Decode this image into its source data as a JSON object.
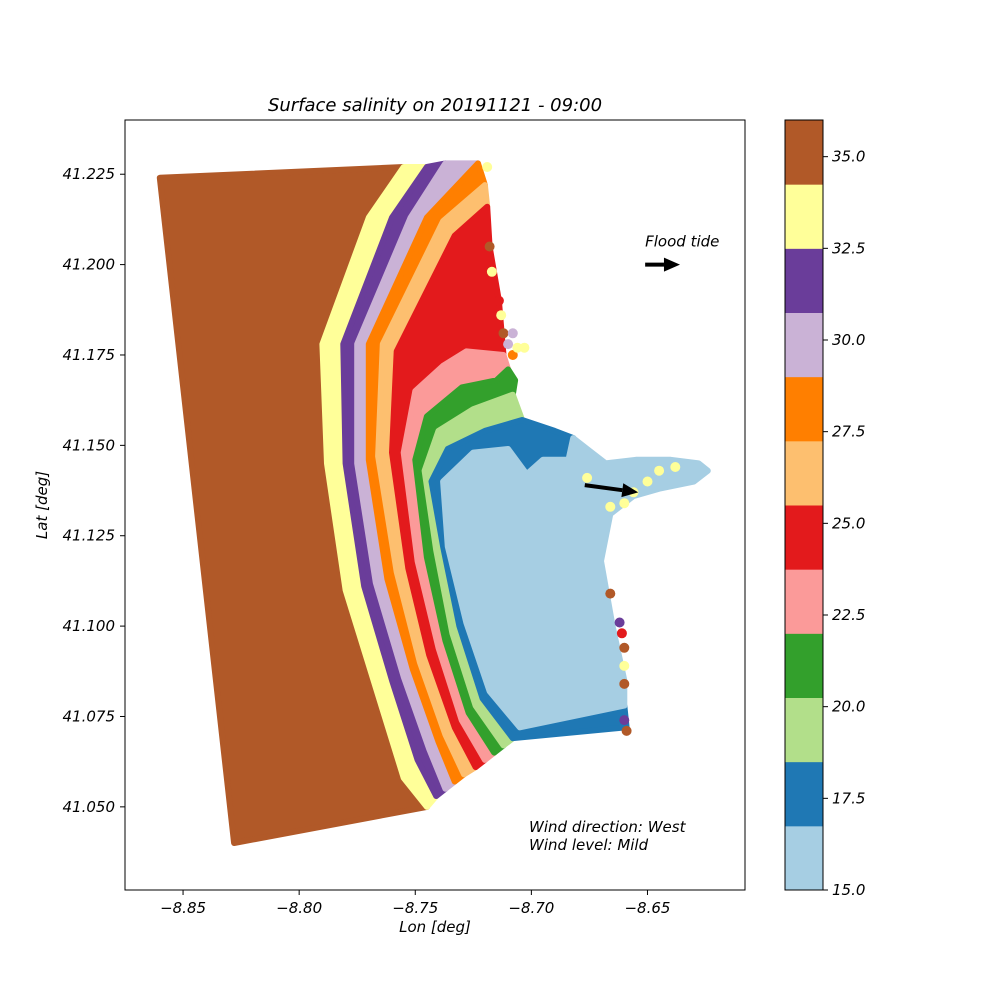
{
  "chart_data": {
    "type": "scatter",
    "title": "Surface salinity on 20191121 - 09:00",
    "xlabel": "Lon [deg]",
    "ylabel": "Lat [deg]",
    "xlim": [
      -8.875,
      -8.608
    ],
    "ylim": [
      41.027,
      41.24
    ],
    "x_ticks": [
      -8.85,
      -8.8,
      -8.75,
      -8.7,
      -8.65
    ],
    "x_tick_labels": [
      "−8.85",
      "−8.80",
      "−8.75",
      "−8.70",
      "−8.65"
    ],
    "y_ticks": [
      41.05,
      41.075,
      41.1,
      41.125,
      41.15,
      41.175,
      41.2,
      41.225
    ],
    "y_tick_labels": [
      "41.050",
      "41.075",
      "41.100",
      "41.125",
      "41.150",
      "41.175",
      "41.200",
      "41.225"
    ],
    "grid": false,
    "annotations": [
      {
        "text": "Flood tide",
        "x": -8.651,
        "y": 41.205
      },
      {
        "text": "Wind direction: West",
        "x": -8.701,
        "y": 41.043
      },
      {
        "text": "Wind level: Mild",
        "x": -8.701,
        "y": 41.038
      }
    ],
    "arrows": [
      {
        "name": "flood-tide",
        "from": [
          -8.651,
          41.2
        ],
        "to": [
          -8.636,
          41.2
        ]
      },
      {
        "name": "river-flow",
        "from": [
          -8.677,
          41.139
        ],
        "to": [
          -8.654,
          41.137
        ]
      }
    ],
    "colorbar": {
      "label": "",
      "min": 15.0,
      "max": 36.0,
      "boundaries": [
        15.0,
        16.75,
        18.5,
        20.25,
        22.0,
        23.75,
        25.5,
        27.25,
        29.0,
        30.75,
        32.5,
        34.25,
        36.0
      ],
      "colors": [
        "#a6cee3",
        "#1f78b4",
        "#b2df8a",
        "#33a02c",
        "#fb9a99",
        "#e31a1c",
        "#fdbf6f",
        "#ff7f00",
        "#cab2d6",
        "#6a3d9a",
        "#ffff99",
        "#b15928"
      ],
      "ticks": [
        15.0,
        17.5,
        20.0,
        22.5,
        25.0,
        27.5,
        30.0,
        32.5,
        35.0
      ],
      "tick_labels": [
        "15.0",
        "17.5",
        "20.0",
        "22.5",
        "25.0",
        "27.5",
        "30.0",
        "32.5",
        "35.0"
      ]
    },
    "series": [
      {
        "salinity": 35.5,
        "polygon": [
          [
            -8.86,
            41.224
          ],
          [
            -8.755,
            41.227
          ],
          [
            -8.77,
            41.213
          ],
          [
            -8.79,
            41.178
          ],
          [
            -8.788,
            41.145
          ],
          [
            -8.78,
            41.11
          ],
          [
            -8.767,
            41.083
          ],
          [
            -8.755,
            41.058
          ],
          [
            -8.745,
            41.05
          ],
          [
            -8.828,
            41.04
          ]
        ]
      },
      {
        "salinity": 33.5,
        "polygon": [
          [
            -8.755,
            41.227
          ],
          [
            -8.745,
            41.227
          ],
          [
            -8.76,
            41.213
          ],
          [
            -8.781,
            41.178
          ],
          [
            -8.78,
            41.145
          ],
          [
            -8.772,
            41.111
          ],
          [
            -8.76,
            41.085
          ],
          [
            -8.749,
            41.063
          ],
          [
            -8.741,
            41.053
          ],
          [
            -8.745,
            41.05
          ],
          [
            -8.755,
            41.058
          ],
          [
            -8.767,
            41.083
          ],
          [
            -8.78,
            41.11
          ],
          [
            -8.788,
            41.145
          ],
          [
            -8.79,
            41.178
          ],
          [
            -8.77,
            41.213
          ]
        ]
      },
      {
        "salinity": 31.5,
        "polygon": [
          [
            -8.745,
            41.227
          ],
          [
            -8.737,
            41.228
          ],
          [
            -8.752,
            41.213
          ],
          [
            -8.775,
            41.178
          ],
          [
            -8.775,
            41.145
          ],
          [
            -8.767,
            41.112
          ],
          [
            -8.755,
            41.086
          ],
          [
            -8.744,
            41.066
          ],
          [
            -8.737,
            41.055
          ],
          [
            -8.741,
            41.053
          ],
          [
            -8.749,
            41.063
          ],
          [
            -8.76,
            41.085
          ],
          [
            -8.772,
            41.111
          ],
          [
            -8.78,
            41.145
          ],
          [
            -8.781,
            41.178
          ],
          [
            -8.76,
            41.213
          ]
        ]
      },
      {
        "salinity": 30.0,
        "polygon": [
          [
            -8.737,
            41.228
          ],
          [
            -8.723,
            41.228
          ],
          [
            -8.745,
            41.213
          ],
          [
            -8.77,
            41.178
          ],
          [
            -8.77,
            41.146
          ],
          [
            -8.762,
            41.113
          ],
          [
            -8.751,
            41.088
          ],
          [
            -8.74,
            41.068
          ],
          [
            -8.733,
            41.057
          ],
          [
            -8.737,
            41.055
          ],
          [
            -8.744,
            41.066
          ],
          [
            -8.755,
            41.086
          ],
          [
            -8.767,
            41.112
          ],
          [
            -8.775,
            41.145
          ],
          [
            -8.775,
            41.178
          ],
          [
            -8.752,
            41.213
          ]
        ]
      },
      {
        "salinity": 28.0,
        "polygon": [
          [
            -8.723,
            41.228
          ],
          [
            -8.72,
            41.222
          ],
          [
            -8.738,
            41.212
          ],
          [
            -8.764,
            41.178
          ],
          [
            -8.766,
            41.147
          ],
          [
            -8.758,
            41.115
          ],
          [
            -8.748,
            41.09
          ],
          [
            -8.737,
            41.07
          ],
          [
            -8.729,
            41.059
          ],
          [
            -8.733,
            41.057
          ],
          [
            -8.74,
            41.068
          ],
          [
            -8.751,
            41.088
          ],
          [
            -8.762,
            41.113
          ],
          [
            -8.77,
            41.146
          ],
          [
            -8.77,
            41.178
          ],
          [
            -8.745,
            41.213
          ]
        ]
      },
      {
        "salinity": 26.5,
        "polygon": [
          [
            -8.72,
            41.222
          ],
          [
            -8.719,
            41.216
          ],
          [
            -8.733,
            41.208
          ],
          [
            -8.758,
            41.176
          ],
          [
            -8.76,
            41.148
          ],
          [
            -8.753,
            41.116
          ],
          [
            -8.744,
            41.092
          ],
          [
            -8.733,
            41.072
          ],
          [
            -8.724,
            41.061
          ],
          [
            -8.729,
            41.059
          ],
          [
            -8.737,
            41.07
          ],
          [
            -8.748,
            41.09
          ],
          [
            -8.758,
            41.115
          ],
          [
            -8.766,
            41.147
          ],
          [
            -8.764,
            41.178
          ],
          [
            -8.738,
            41.212
          ]
        ]
      },
      {
        "salinity": 24.5,
        "polygon": [
          [
            -8.719,
            41.216
          ],
          [
            -8.718,
            41.205
          ],
          [
            -8.714,
            41.19
          ],
          [
            -8.712,
            41.175
          ],
          [
            -8.728,
            41.176
          ],
          [
            -8.738,
            41.172
          ],
          [
            -8.75,
            41.165
          ],
          [
            -8.755,
            41.148
          ],
          [
            -8.749,
            41.118
          ],
          [
            -8.74,
            41.094
          ],
          [
            -8.73,
            41.074
          ],
          [
            -8.72,
            41.063
          ],
          [
            -8.724,
            41.061
          ],
          [
            -8.733,
            41.072
          ],
          [
            -8.744,
            41.092
          ],
          [
            -8.753,
            41.116
          ],
          [
            -8.76,
            41.148
          ],
          [
            -8.758,
            41.176
          ],
          [
            -8.733,
            41.208
          ]
        ]
      },
      {
        "salinity": 23.0,
        "polygon": [
          [
            -8.712,
            41.175
          ],
          [
            -8.71,
            41.171
          ],
          [
            -8.715,
            41.168
          ],
          [
            -8.73,
            41.166
          ],
          [
            -8.745,
            41.158
          ],
          [
            -8.75,
            41.146
          ],
          [
            -8.745,
            41.119
          ],
          [
            -8.737,
            41.096
          ],
          [
            -8.727,
            41.076
          ],
          [
            -8.716,
            41.065
          ],
          [
            -8.72,
            41.063
          ],
          [
            -8.73,
            41.074
          ],
          [
            -8.74,
            41.094
          ],
          [
            -8.749,
            41.118
          ],
          [
            -8.755,
            41.148
          ],
          [
            -8.75,
            41.165
          ],
          [
            -8.738,
            41.172
          ],
          [
            -8.728,
            41.176
          ]
        ]
      },
      {
        "salinity": 21.0,
        "polygon": [
          [
            -8.71,
            41.171
          ],
          [
            -8.707,
            41.168
          ],
          [
            -8.708,
            41.164
          ],
          [
            -8.725,
            41.16
          ],
          [
            -8.74,
            41.154
          ],
          [
            -8.746,
            41.143
          ],
          [
            -8.741,
            41.121
          ],
          [
            -8.734,
            41.098
          ],
          [
            -8.724,
            41.078
          ],
          [
            -8.712,
            41.067
          ],
          [
            -8.716,
            41.065
          ],
          [
            -8.727,
            41.076
          ],
          [
            -8.737,
            41.096
          ],
          [
            -8.745,
            41.119
          ],
          [
            -8.75,
            41.146
          ],
          [
            -8.745,
            41.158
          ],
          [
            -8.73,
            41.166
          ],
          [
            -8.715,
            41.168
          ]
        ]
      },
      {
        "salinity": 19.5,
        "polygon": [
          [
            -8.708,
            41.164
          ],
          [
            -8.704,
            41.157
          ],
          [
            -8.72,
            41.154
          ],
          [
            -8.736,
            41.149
          ],
          [
            -8.743,
            41.14
          ],
          [
            -8.738,
            41.122
          ],
          [
            -8.731,
            41.1
          ],
          [
            -8.721,
            41.08
          ],
          [
            -8.708,
            41.069
          ],
          [
            -8.712,
            41.067
          ],
          [
            -8.724,
            41.078
          ],
          [
            -8.734,
            41.098
          ],
          [
            -8.741,
            41.121
          ],
          [
            -8.746,
            41.143
          ],
          [
            -8.74,
            41.154
          ],
          [
            -8.725,
            41.16
          ]
        ]
      },
      {
        "salinity": 17.5,
        "polygon": [
          [
            -8.704,
            41.157
          ],
          [
            -8.69,
            41.154
          ],
          [
            -8.682,
            41.152
          ],
          [
            -8.684,
            41.146
          ],
          [
            -8.695,
            41.146
          ],
          [
            -8.702,
            41.142
          ],
          [
            -8.71,
            41.149
          ],
          [
            -8.725,
            41.148
          ],
          [
            -8.738,
            41.14
          ],
          [
            -8.736,
            41.122
          ],
          [
            -8.728,
            41.101
          ],
          [
            -8.718,
            41.082
          ],
          [
            -8.705,
            41.072
          ],
          [
            -8.66,
            41.078
          ],
          [
            -8.659,
            41.072
          ],
          [
            -8.708,
            41.069
          ],
          [
            -8.721,
            41.08
          ],
          [
            -8.731,
            41.1
          ],
          [
            -8.738,
            41.122
          ],
          [
            -8.743,
            41.14
          ],
          [
            -8.736,
            41.149
          ],
          [
            -8.72,
            41.154
          ]
        ]
      },
      {
        "salinity": 16.0,
        "polygon": [
          [
            -8.738,
            41.14
          ],
          [
            -8.725,
            41.148
          ],
          [
            -8.71,
            41.149
          ],
          [
            -8.702,
            41.142
          ],
          [
            -8.695,
            41.146
          ],
          [
            -8.684,
            41.146
          ],
          [
            -8.682,
            41.152
          ],
          [
            -8.676,
            41.149
          ],
          [
            -8.668,
            41.145
          ],
          [
            -8.655,
            41.146
          ],
          [
            -8.64,
            41.146
          ],
          [
            -8.628,
            41.145
          ],
          [
            -8.624,
            41.143
          ],
          [
            -8.63,
            41.14
          ],
          [
            -8.645,
            41.138
          ],
          [
            -8.656,
            41.136
          ],
          [
            -8.666,
            41.131
          ],
          [
            -8.67,
            41.118
          ],
          [
            -8.665,
            41.1
          ],
          [
            -8.66,
            41.085
          ],
          [
            -8.66,
            41.078
          ],
          [
            -8.705,
            41.072
          ],
          [
            -8.718,
            41.082
          ],
          [
            -8.728,
            41.101
          ],
          [
            -8.736,
            41.122
          ]
        ]
      }
    ],
    "points": [
      {
        "x": -8.719,
        "y": 41.227,
        "salinity": 33.5
      },
      {
        "x": -8.718,
        "y": 41.205,
        "salinity": 35.5
      },
      {
        "x": -8.717,
        "y": 41.198,
        "salinity": 33.5
      },
      {
        "x": -8.714,
        "y": 41.19,
        "salinity": 24.5
      },
      {
        "x": -8.713,
        "y": 41.186,
        "salinity": 33.5
      },
      {
        "x": -8.712,
        "y": 41.181,
        "salinity": 35.5
      },
      {
        "x": -8.71,
        "y": 41.178,
        "salinity": 30.0
      },
      {
        "x": -8.708,
        "y": 41.175,
        "salinity": 28.0
      },
      {
        "x": -8.706,
        "y": 41.177,
        "salinity": 33.5
      },
      {
        "x": -8.708,
        "y": 41.181,
        "salinity": 30.0
      },
      {
        "x": -8.703,
        "y": 41.177,
        "salinity": 33.5
      },
      {
        "x": -8.662,
        "y": 41.101,
        "salinity": 31.5
      },
      {
        "x": -8.661,
        "y": 41.098,
        "salinity": 24.5
      },
      {
        "x": -8.66,
        "y": 41.094,
        "salinity": 35.5
      },
      {
        "x": -8.66,
        "y": 41.089,
        "salinity": 33.5
      },
      {
        "x": -8.66,
        "y": 41.084,
        "salinity": 35.5
      },
      {
        "x": -8.666,
        "y": 41.109,
        "salinity": 35.5
      },
      {
        "x": -8.66,
        "y": 41.074,
        "salinity": 31.5
      },
      {
        "x": -8.659,
        "y": 41.071,
        "salinity": 35.5
      },
      {
        "x": -8.676,
        "y": 41.141,
        "salinity": 33.5
      },
      {
        "x": -8.666,
        "y": 41.133,
        "salinity": 33.5
      },
      {
        "x": -8.66,
        "y": 41.134,
        "salinity": 33.5
      },
      {
        "x": -8.656,
        "y": 41.137,
        "salinity": 33.5
      },
      {
        "x": -8.65,
        "y": 41.14,
        "salinity": 33.5
      },
      {
        "x": -8.645,
        "y": 41.143,
        "salinity": 33.5
      },
      {
        "x": -8.638,
        "y": 41.144,
        "salinity": 33.5
      }
    ]
  }
}
